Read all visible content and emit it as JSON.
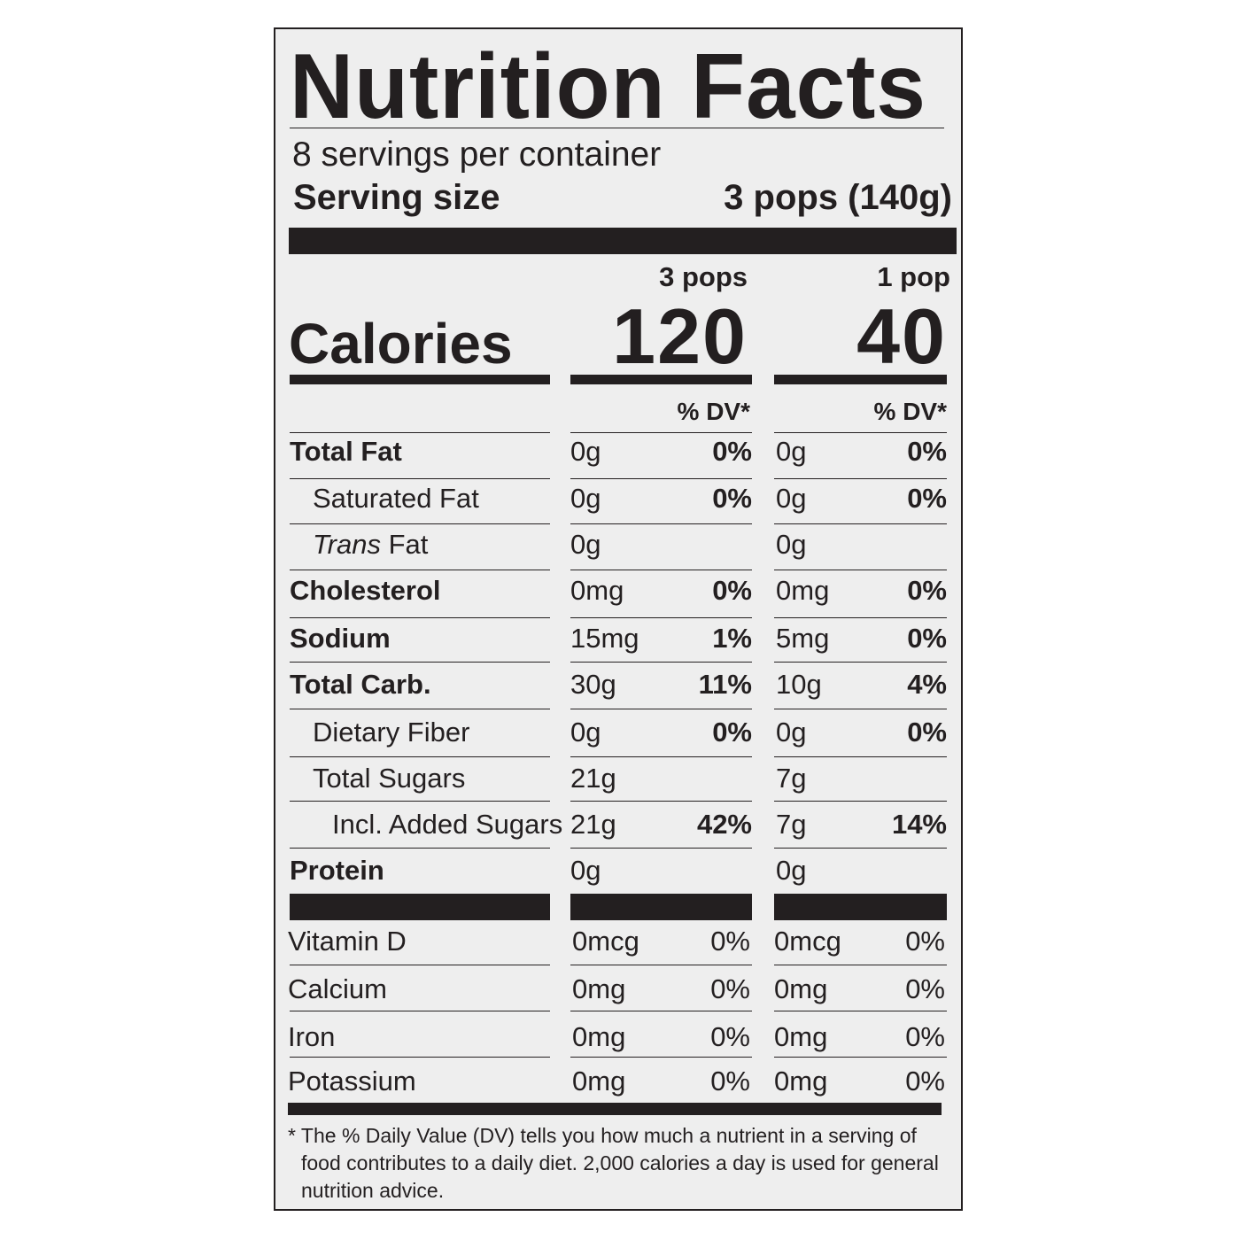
{
  "title": "Nutrition Facts",
  "servings_per_container": "8 servings per container",
  "serving_size_label": "Serving size",
  "serving_size_value": "3 pops (140g)",
  "columns": [
    {
      "header": "3 pops",
      "calories": "120",
      "dv_header": "% DV*"
    },
    {
      "header": "1 pop",
      "calories": "40",
      "dv_header": "% DV*"
    }
  ],
  "calories_label": "Calories",
  "nutrients": [
    {
      "name": "Total Fat",
      "style": "bold",
      "a_amount": "0g",
      "a_dv": "0%",
      "b_amount": "0g",
      "b_dv": "0%"
    },
    {
      "name": "Saturated Fat",
      "style": "sub",
      "a_amount": "0g",
      "a_dv": "0%",
      "b_amount": "0g",
      "b_dv": "0%"
    },
    {
      "name_italic": "Trans",
      "name": " Fat",
      "style": "sub-italic",
      "a_amount": "0g",
      "a_dv": "",
      "b_amount": "0g",
      "b_dv": ""
    },
    {
      "name": "Cholesterol",
      "style": "bold",
      "a_amount": "0mg",
      "a_dv": "0%",
      "b_amount": "0mg",
      "b_dv": "0%"
    },
    {
      "name": "Sodium",
      "style": "bold",
      "a_amount": "15mg",
      "a_dv": "1%",
      "b_amount": "5mg",
      "b_dv": "0%"
    },
    {
      "name": "Total Carb.",
      "style": "bold",
      "a_amount": "30g",
      "a_dv": "11%",
      "b_amount": "10g",
      "b_dv": "4%"
    },
    {
      "name": "Dietary Fiber",
      "style": "sub",
      "a_amount": "0g",
      "a_dv": "0%",
      "b_amount": "0g",
      "b_dv": "0%"
    },
    {
      "name": "Total Sugars",
      "style": "sub",
      "a_amount": "21g",
      "a_dv": "",
      "b_amount": "7g",
      "b_dv": ""
    },
    {
      "name": "Incl. Added Sugars",
      "style": "subsub",
      "a_amount": "21g",
      "a_dv": "42%",
      "b_amount": "7g",
      "b_dv": "14%"
    },
    {
      "name": "Protein",
      "style": "bold",
      "a_amount": "0g",
      "a_dv": "",
      "b_amount": "0g",
      "b_dv": ""
    }
  ],
  "vitamins": [
    {
      "name": "Vitamin D",
      "a_amount": "0mcg",
      "a_dv": "0%",
      "b_amount": "0mcg",
      "b_dv": "0%"
    },
    {
      "name": "Calcium",
      "a_amount": "0mg",
      "a_dv": "0%",
      "b_amount": "0mg",
      "b_dv": "0%"
    },
    {
      "name": "Iron",
      "a_amount": "0mg",
      "a_dv": "0%",
      "b_amount": "0mg",
      "b_dv": "0%"
    },
    {
      "name": "Potassium",
      "a_amount": "0mg",
      "a_dv": "0%",
      "b_amount": "0mg",
      "b_dv": "0%"
    }
  ],
  "footnote": "* The % Daily Value (DV) tells you how much a nutrient in a serving of food contributes to a daily diet. 2,000 calories a day is used for general nutrition advice."
}
